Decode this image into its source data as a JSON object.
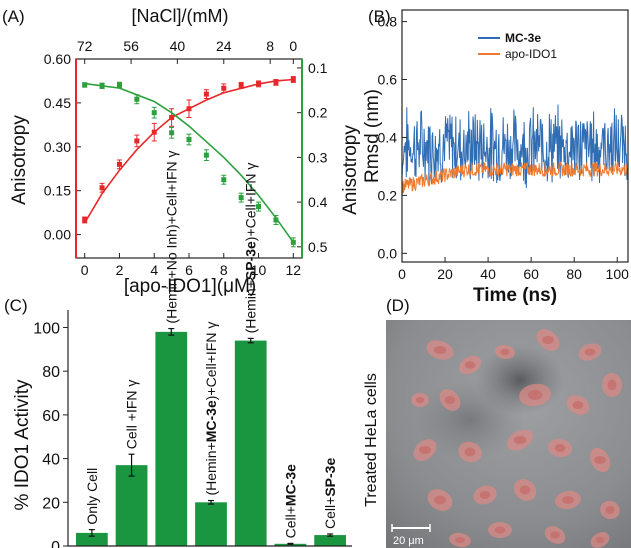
{
  "chart_data": [
    {
      "panel_label": "(A)",
      "type": "scatter",
      "xlabel": "[apo-IDO1](μM)",
      "ylabel": "Anisotropy",
      "top_xlabel": "[NaCl]/(mM)",
      "right_ylabel": "Anisotropy",
      "xlim": [
        -0.5,
        12.5
      ],
      "ylim": [
        -0.08,
        0.6
      ],
      "x_ticks": [
        "0",
        "2",
        "4",
        "6",
        "8",
        "10",
        "12"
      ],
      "y_ticks": [
        "0.00",
        "0.15",
        "0.30",
        "0.45",
        "0.60"
      ],
      "top_x_ticks": [
        "72",
        "56",
        "40",
        "24",
        "8",
        "0"
      ],
      "top_x_tick_positions_apo": [
        0,
        2.67,
        5.33,
        8.0,
        10.67,
        12
      ],
      "right_ylim": [
        0.525,
        0.08
      ],
      "right_y_ticks": [
        "0.1",
        "0.2",
        "0.3",
        "0.4",
        "0.5"
      ],
      "series": [
        {
          "color": "#e8272a",
          "x": [
            0,
            1.0,
            2.0,
            3.0,
            4.0,
            5.0,
            6.0,
            7.0,
            8.0,
            9.0,
            10.0,
            11.0,
            12.0
          ],
          "y": [
            0.05,
            0.16,
            0.24,
            0.32,
            0.35,
            0.4,
            0.43,
            0.48,
            0.5,
            0.51,
            0.515,
            0.52,
            0.53
          ],
          "err": [
            0.01,
            0.015,
            0.015,
            0.02,
            0.03,
            0.03,
            0.03,
            0.015,
            0.015,
            0.01,
            0.01,
            0.01,
            0.01
          ],
          "fit": [
            [
              0,
              0.04
            ],
            [
              1,
              0.14
            ],
            [
              2,
              0.22
            ],
            [
              3,
              0.29
            ],
            [
              4,
              0.35
            ],
            [
              5,
              0.4
            ],
            [
              6,
              0.43
            ],
            [
              7,
              0.46
            ],
            [
              8,
              0.485
            ],
            [
              9,
              0.5
            ],
            [
              10,
              0.515
            ],
            [
              11,
              0.525
            ],
            [
              12,
              0.53
            ]
          ]
        },
        {
          "color": "#2aa13c",
          "axis": "right",
          "x": [
            0,
            1.0,
            2.0,
            3.0,
            4.0,
            5.0,
            6.0,
            7.0,
            8.0,
            9.0,
            10.0,
            11.0,
            12.0
          ],
          "y": [
            0.138,
            0.14,
            0.138,
            0.17,
            0.2,
            0.245,
            0.26,
            0.295,
            0.35,
            0.39,
            0.41,
            0.44,
            0.49
          ],
          "err": [
            0.005,
            0.006,
            0.006,
            0.01,
            0.012,
            0.012,
            0.012,
            0.012,
            0.01,
            0.01,
            0.01,
            0.01,
            0.01
          ],
          "fit": [
            [
              0,
              0.135
            ],
            [
              2,
              0.145
            ],
            [
              4,
              0.175
            ],
            [
              5,
              0.2
            ],
            [
              6,
              0.23
            ],
            [
              7,
              0.265
            ],
            [
              8,
              0.3
            ],
            [
              9,
              0.34
            ],
            [
              10,
              0.385
            ],
            [
              11,
              0.435
            ],
            [
              12,
              0.49
            ]
          ]
        }
      ]
    },
    {
      "panel_label": "(B)",
      "type": "line",
      "xlabel": "Time (ns)",
      "ylabel": "Rmsd (nm)",
      "xlim": [
        0,
        105
      ],
      "ylim": [
        -0.03,
        0.84
      ],
      "x_ticks": [
        "0",
        "20",
        "40",
        "60",
        "80",
        "100"
      ],
      "y_ticks": [
        "0.0",
        "0.2",
        "0.4",
        "0.6",
        "0.8"
      ],
      "series": [
        {
          "name": "MC-3e",
          "color": "#2f6db5",
          "mean": 0.37,
          "min": 0.2,
          "max": 0.57
        },
        {
          "name": "apo-IDO1",
          "color": "#ef7a2d",
          "mean_start": 0.23,
          "mean_end": 0.29,
          "min": 0.19,
          "max": 0.32
        }
      ]
    },
    {
      "panel_label": "(C)",
      "type": "bar",
      "ylabel": "% IDO1 Activity",
      "ylim": [
        0,
        108
      ],
      "y_ticks": [
        "0",
        "20",
        "40",
        "60",
        "80",
        "100"
      ],
      "color": "#1a9641",
      "categories": [
        {
          "parts": [
            {
              "t": "Only Cell",
              "b": false
            }
          ]
        },
        {
          "parts": [
            {
              "t": "Cell +IFN γ",
              "b": false
            }
          ]
        },
        {
          "parts": [
            {
              "t": "(Hemin+No Inh)+Cell+IFN γ",
              "b": false
            }
          ]
        },
        {
          "parts": [
            {
              "t": "(Hemin+",
              "b": false
            },
            {
              "t": "MC-3e",
              "b": true
            },
            {
              "t": ")+Cell+IFN γ",
              "b": false
            }
          ]
        },
        {
          "parts": [
            {
              "t": "(Hemin+",
              "b": false
            },
            {
              "t": "SP-3e",
              "b": true
            },
            {
              "t": ")+Cell+IFN γ",
              "b": false
            }
          ]
        },
        {
          "parts": [
            {
              "t": "Cell+",
              "b": false
            },
            {
              "t": "MC-3e",
              "b": true
            }
          ]
        },
        {
          "parts": [
            {
              "t": "Cell+",
              "b": false
            },
            {
              "t": "SP-3e",
              "b": true
            }
          ]
        }
      ],
      "values": [
        6,
        37,
        98,
        20,
        94,
        1,
        5
      ],
      "errors": [
        1.5,
        5,
        1.5,
        0.8,
        1,
        0.2,
        0.5
      ]
    }
  ],
  "panel_d": {
    "panel_label": "(D)",
    "side_label": "Treated HeLa cells",
    "scale_bar": "20 μm"
  }
}
